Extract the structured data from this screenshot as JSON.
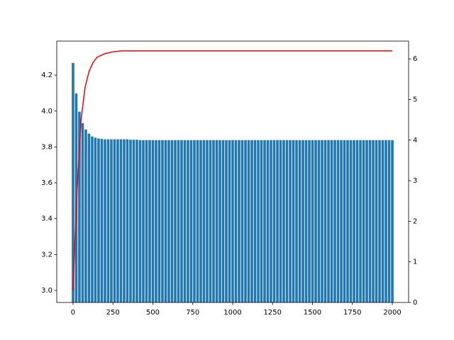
{
  "chart_data": {
    "type": "bar",
    "x": [
      0,
      20,
      40,
      60,
      80,
      100,
      120,
      140,
      160,
      180,
      200,
      220,
      240,
      260,
      280,
      300,
      320,
      340,
      360,
      380,
      400,
      420,
      440,
      460,
      480,
      500,
      520,
      540,
      560,
      580,
      600,
      620,
      640,
      660,
      680,
      700,
      720,
      740,
      760,
      780,
      800,
      820,
      840,
      860,
      880,
      900,
      920,
      940,
      960,
      980,
      1000,
      1020,
      1040,
      1060,
      1080,
      1100,
      1120,
      1140,
      1160,
      1180,
      1200,
      1220,
      1240,
      1260,
      1280,
      1300,
      1320,
      1340,
      1360,
      1380,
      1400,
      1420,
      1440,
      1460,
      1480,
      1500,
      1520,
      1540,
      1560,
      1580,
      1600,
      1620,
      1640,
      1660,
      1680,
      1700,
      1720,
      1740,
      1760,
      1780,
      1800,
      1820,
      1840,
      1860,
      1880,
      1900,
      1920,
      1940,
      1960,
      1980,
      2000
    ],
    "series": [
      {
        "type": "bar",
        "axis": "y2",
        "color": "#1f77b4",
        "values": [
          5.9,
          5.15,
          4.7,
          4.42,
          4.26,
          4.16,
          4.09,
          4.06,
          4.04,
          4.03,
          4.02,
          4.02,
          4.02,
          4.02,
          4.02,
          4.02,
          4.02,
          4.02,
          4.01,
          4.01,
          4.01,
          4,
          4,
          4,
          4,
          4,
          4,
          4,
          4,
          4,
          4,
          4,
          4,
          4,
          4,
          4,
          4,
          4,
          4,
          4,
          4,
          4,
          4,
          4,
          4,
          4,
          4,
          4,
          4,
          4,
          4,
          4,
          4,
          4,
          4,
          4,
          4,
          4,
          4,
          4,
          4,
          4,
          4,
          4,
          4,
          4,
          4,
          4,
          4,
          4,
          4,
          4,
          4,
          4,
          4,
          4,
          4,
          4,
          4,
          4,
          4,
          4,
          4,
          4,
          4,
          4,
          4,
          4,
          4,
          4,
          4,
          4,
          4,
          4,
          4,
          4,
          4,
          4,
          4,
          4,
          4
        ]
      },
      {
        "type": "line",
        "axis": "y",
        "color": "#ff0000",
        "x": [
          0,
          10,
          25,
          50,
          75,
          100,
          125,
          150,
          200,
          250,
          300,
          400,
          2000
        ],
        "values": [
          3.0,
          3.25,
          3.55,
          3.95,
          4.13,
          4.22,
          4.27,
          4.3,
          4.32,
          4.33,
          4.335,
          4.335,
          4.335
        ]
      }
    ],
    "xlim": [
      -102,
      2102
    ],
    "xticks": [
      0,
      250,
      500,
      750,
      1000,
      1250,
      1500,
      1750,
      2000
    ],
    "ylim": [
      2.933,
      4.39
    ],
    "yticks": [
      {
        "value": 3,
        "label": "3.0"
      },
      3.2,
      3.4,
      3.6,
      3.8,
      {
        "value": 4,
        "label": "4.0"
      },
      4.2
    ],
    "y2lim": [
      0,
      6.44
    ],
    "y2ticks": [
      0,
      1,
      2,
      3,
      4,
      5,
      6
    ]
  }
}
